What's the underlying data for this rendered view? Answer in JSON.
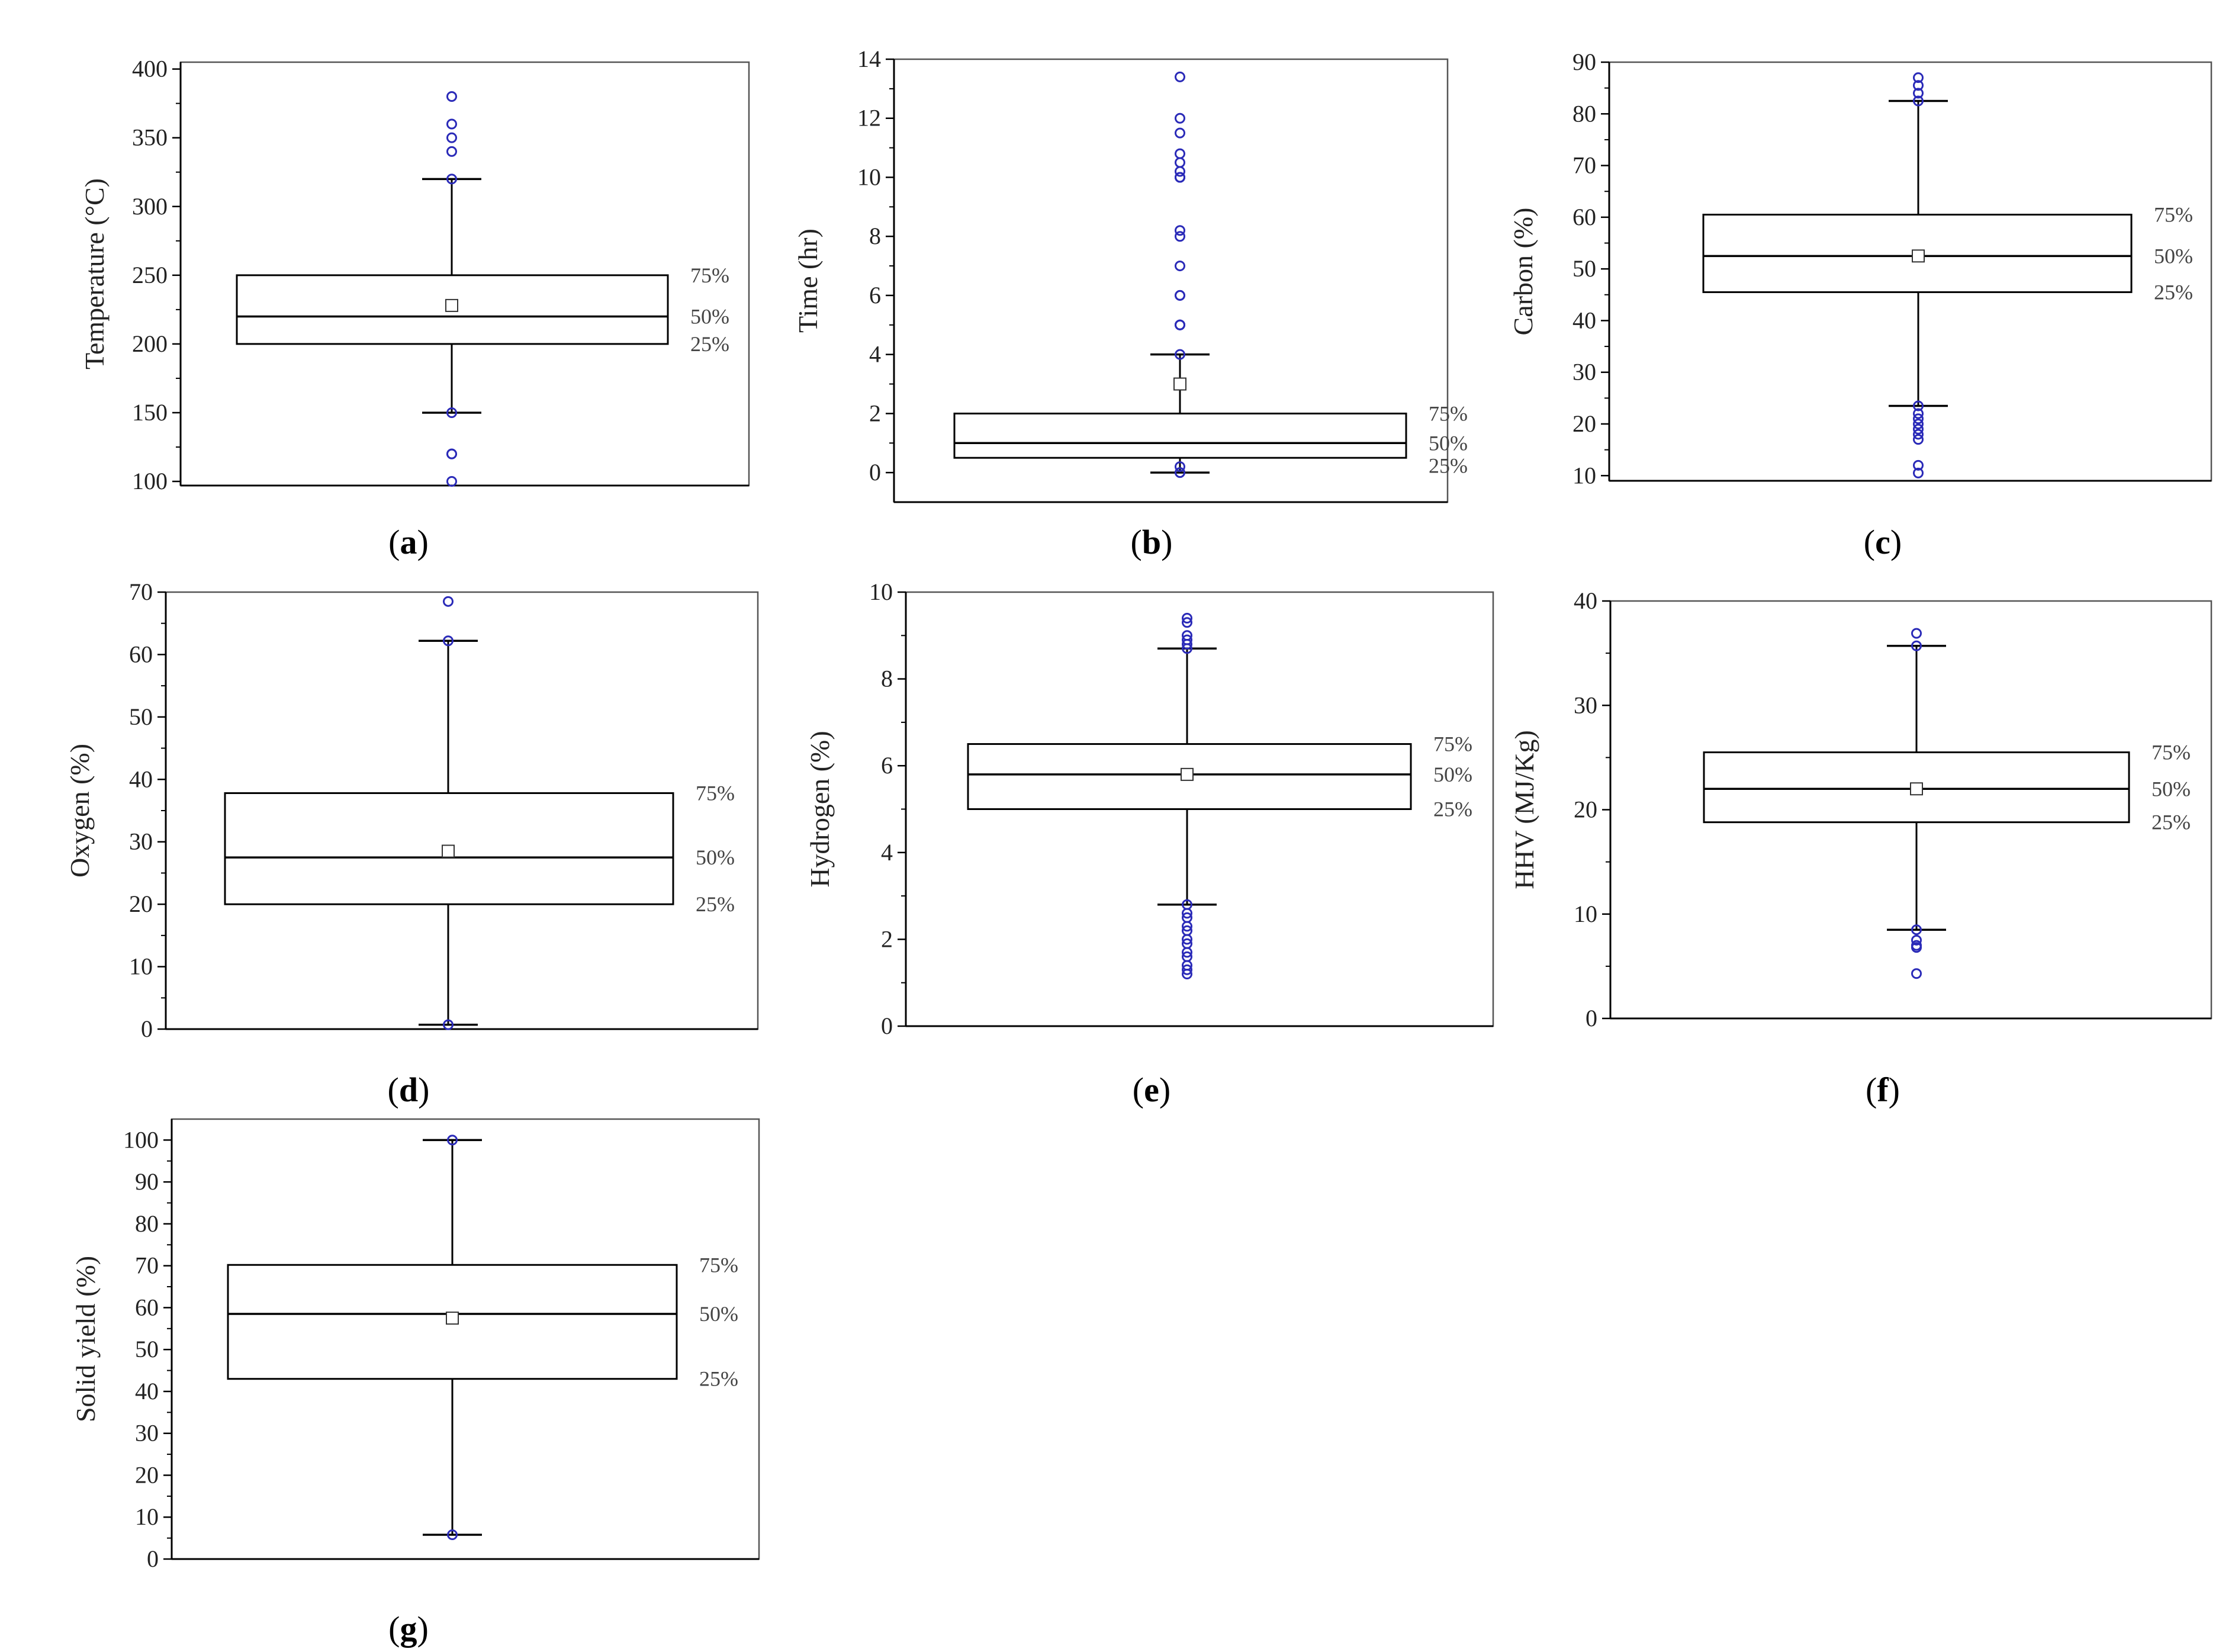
{
  "figure": {
    "colors": {
      "outlier": "#2a2ab8",
      "axis": "#000000",
      "text": "#222222"
    }
  },
  "chart_data": [
    {
      "id": "a",
      "type": "box",
      "caption_letter": "a",
      "ylabel": "Temperature (°C)",
      "yticks": [
        100,
        150,
        200,
        250,
        300,
        350,
        400
      ],
      "ylim": [
        97,
        405
      ],
      "box": {
        "q1": 200,
        "median": 220,
        "q3": 250,
        "mean": 228,
        "whisker_low": 150,
        "whisker_high": 320
      },
      "outliers": [
        380,
        360,
        350,
        340,
        320,
        150,
        120,
        120,
        100
      ],
      "percent_labels": [
        "75%",
        "50%",
        "25%"
      ]
    },
    {
      "id": "b",
      "type": "box",
      "caption_letter": "b",
      "ylabel": "Time (hr)",
      "yticks": [
        0,
        2,
        4,
        6,
        8,
        10,
        12,
        14
      ],
      "ylim": [
        -1,
        14
      ],
      "box": {
        "q1": 0.5,
        "median": 1,
        "q3": 2,
        "mean": 3,
        "whisker_low": 0,
        "whisker_high": 4
      },
      "outliers": [
        13.4,
        12,
        11.5,
        10.8,
        10.5,
        10.2,
        10,
        10,
        10,
        8.2,
        8,
        7,
        6,
        6,
        5,
        5,
        5,
        4,
        0.2,
        0,
        0
      ],
      "percent_labels": [
        "75%",
        "50%",
        "25%"
      ]
    },
    {
      "id": "c",
      "type": "box",
      "caption_letter": "c",
      "ylabel": "Carbon (%)",
      "yticks": [
        10,
        20,
        30,
        40,
        50,
        60,
        70,
        80,
        90
      ],
      "ylim": [
        9,
        90
      ],
      "box": {
        "q1": 45.5,
        "median": 52.5,
        "q3": 60.5,
        "mean": 52.5,
        "whisker_low": 23.5,
        "whisker_high": 82.5
      },
      "outliers": [
        87,
        85.5,
        84,
        82.5,
        23.5,
        22,
        21,
        20,
        19,
        18,
        17,
        12,
        10.5
      ],
      "percent_labels": [
        "75%",
        "50%",
        "25%"
      ]
    },
    {
      "id": "d",
      "type": "box",
      "caption_letter": "d",
      "ylabel": "Oxygen (%)",
      "yticks": [
        0,
        10,
        20,
        30,
        40,
        50,
        60,
        70
      ],
      "ylim": [
        0,
        70
      ],
      "box": {
        "q1": 20,
        "median": 27.5,
        "q3": 37.8,
        "mean": 28.5,
        "whisker_low": 0.7,
        "whisker_high": 62.2
      },
      "outliers": [
        68.5,
        62.2,
        0.7
      ],
      "percent_labels": [
        "75%",
        "50%",
        "25%"
      ]
    },
    {
      "id": "e",
      "type": "box",
      "caption_letter": "e",
      "ylabel": "Hydrogen (%)",
      "yticks": [
        0,
        2,
        4,
        6,
        8,
        10
      ],
      "ylim": [
        0,
        10
      ],
      "box": {
        "q1": 5,
        "median": 5.8,
        "q3": 6.5,
        "mean": 5.8,
        "whisker_low": 2.8,
        "whisker_high": 8.7
      },
      "outliers": [
        9.4,
        9.3,
        9,
        8.9,
        8.8,
        8.7,
        2.8,
        2.6,
        2.5,
        2.3,
        2.2,
        2,
        1.9,
        1.7,
        1.6,
        1.4,
        1.3,
        1.2
      ],
      "percent_labels": [
        "75%",
        "50%",
        "25%"
      ]
    },
    {
      "id": "f",
      "type": "box",
      "caption_letter": "f",
      "ylabel": "HHV (MJ/Kg)",
      "yticks": [
        0,
        10,
        20,
        30,
        40
      ],
      "ylim": [
        0,
        40
      ],
      "box": {
        "q1": 18.8,
        "median": 22,
        "q3": 25.5,
        "mean": 22,
        "whisker_low": 8.5,
        "whisker_high": 35.7
      },
      "outliers": [
        36.9,
        35.7,
        8.5,
        7.5,
        7,
        6.8,
        4.3
      ],
      "percent_labels": [
        "75%",
        "50%",
        "25%"
      ]
    },
    {
      "id": "g",
      "type": "box",
      "caption_letter": "g",
      "ylabel": "Solid yield (%)",
      "yticks": [
        0,
        10,
        20,
        30,
        40,
        50,
        60,
        70,
        80,
        90,
        100
      ],
      "ylim": [
        0,
        105
      ],
      "box": {
        "q1": 43,
        "median": 58.5,
        "q3": 70.2,
        "mean": 57.5,
        "whisker_low": 5.8,
        "whisker_high": 100
      },
      "outliers": [
        100,
        5.8
      ],
      "percent_labels": [
        "75%",
        "50%",
        "25%"
      ]
    }
  ]
}
